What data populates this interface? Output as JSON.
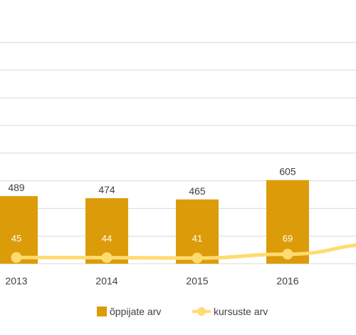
{
  "chart_data": {
    "type": "bar",
    "categories": [
      "2013",
      "2014",
      "2015",
      "2016"
    ],
    "series": [
      {
        "name": "õppijate arv",
        "kind": "bar",
        "values": [
          489,
          474,
          465,
          605
        ],
        "color": "#dc9c0a"
      },
      {
        "name": "kursuste arv",
        "kind": "line",
        "values": [
          45,
          44,
          41,
          69
        ],
        "color": "#ffdb70"
      }
    ],
    "ylim": [
      0,
      1600
    ],
    "grid": true,
    "legend": "bottom",
    "partial_next_category": {
      "bar_value_exceeds_view": true,
      "line_value": 141
    }
  }
}
